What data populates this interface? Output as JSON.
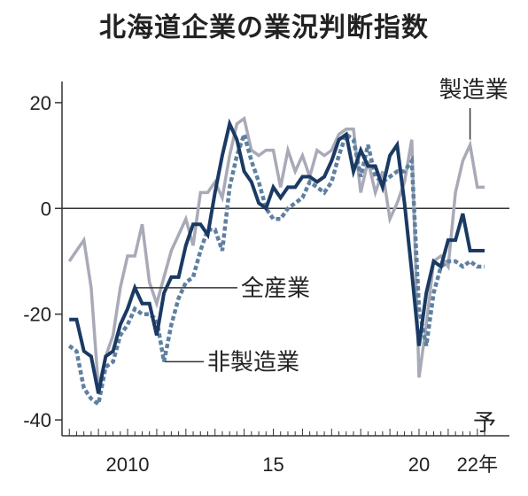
{
  "title": "北海道企業の業況判断指数",
  "chart_data": {
    "type": "line",
    "title": "北海道企業の業況判断指数",
    "ylim": [
      -43,
      24
    ],
    "xlim": [
      2007.75,
      2023.1
    ],
    "yticks": [
      20,
      0,
      -20,
      -40
    ],
    "ytick_labels": [
      "20",
      "0",
      "-20",
      "-40"
    ],
    "xtick_labels": [
      {
        "x": 2010,
        "label": "2010"
      },
      {
        "x": 2015,
        "label": "15"
      },
      {
        "x": 2020,
        "label": "20"
      },
      {
        "x": 2022,
        "label": "22年"
      }
    ],
    "forecast_label": "予",
    "grid": false,
    "zero_line": true,
    "series": [
      {
        "name": "製造業",
        "color": "#a9aab8",
        "style": "solid",
        "x": [
          2008.0,
          2008.25,
          2008.5,
          2008.75,
          2009.0,
          2009.25,
          2009.5,
          2009.75,
          2010.0,
          2010.25,
          2010.5,
          2010.75,
          2011.0,
          2011.25,
          2011.5,
          2011.75,
          2012.0,
          2012.25,
          2012.5,
          2012.75,
          2013.0,
          2013.25,
          2013.5,
          2013.75,
          2014.0,
          2014.25,
          2014.5,
          2014.75,
          2015.0,
          2015.25,
          2015.5,
          2015.75,
          2016.0,
          2016.25,
          2016.5,
          2016.75,
          2017.0,
          2017.25,
          2017.5,
          2017.75,
          2018.0,
          2018.25,
          2018.5,
          2018.75,
          2019.0,
          2019.25,
          2019.5,
          2019.75,
          2020.0,
          2020.25,
          2020.5,
          2020.75,
          2021.0,
          2021.25,
          2021.5,
          2021.75,
          2022.0,
          2022.25
        ],
        "values": [
          -10,
          -8,
          -6,
          -15,
          -34,
          -28,
          -24,
          -15,
          -9,
          -9,
          -3,
          -14,
          -18,
          -13,
          -8,
          -5,
          -2,
          -7,
          3,
          3,
          5,
          2,
          10,
          16,
          17,
          11,
          10,
          11,
          11,
          4,
          11,
          7,
          10,
          6,
          11,
          10,
          11,
          14,
          15,
          15,
          3,
          9,
          3,
          7,
          -2,
          1,
          5,
          13,
          -32,
          -22,
          -10,
          -9,
          -11,
          3,
          9,
          12,
          4,
          4
        ]
      },
      {
        "name": "非製造業",
        "color": "#5f80a0",
        "style": "dotted",
        "x": [
          2008.0,
          2008.25,
          2008.5,
          2008.75,
          2009.0,
          2009.25,
          2009.5,
          2009.75,
          2010.0,
          2010.25,
          2010.5,
          2010.75,
          2011.0,
          2011.25,
          2011.5,
          2011.75,
          2012.0,
          2012.25,
          2012.5,
          2012.75,
          2013.0,
          2013.25,
          2013.5,
          2013.75,
          2014.0,
          2014.25,
          2014.5,
          2014.75,
          2015.0,
          2015.25,
          2015.5,
          2015.75,
          2016.0,
          2016.25,
          2016.5,
          2016.75,
          2017.0,
          2017.25,
          2017.5,
          2017.75,
          2018.0,
          2018.25,
          2018.5,
          2018.75,
          2019.0,
          2019.25,
          2019.5,
          2019.75,
          2020.0,
          2020.25,
          2020.5,
          2020.75,
          2021.0,
          2021.25,
          2021.5,
          2021.75,
          2022.0,
          2022.25
        ],
        "values": [
          -26,
          -27,
          -34,
          -36,
          -37,
          -30,
          -29,
          -24,
          -22,
          -19,
          -20,
          -20,
          -21,
          -29,
          -22,
          -17,
          -14,
          -13,
          -8,
          -4,
          -4,
          -8,
          4,
          10,
          14,
          9,
          5,
          0,
          -2,
          -2,
          0,
          1,
          2,
          5,
          4,
          3,
          5,
          10,
          14,
          13,
          6,
          12,
          6,
          5,
          6,
          7,
          7,
          9,
          -19,
          -26,
          -16,
          -11,
          -10,
          -10,
          -11,
          -10,
          -11,
          -11
        ]
      },
      {
        "name": "全産業",
        "color": "#1a3a63",
        "style": "solid",
        "x": [
          2008.0,
          2008.25,
          2008.5,
          2008.75,
          2009.0,
          2009.25,
          2009.5,
          2009.75,
          2010.0,
          2010.25,
          2010.5,
          2010.75,
          2011.0,
          2011.25,
          2011.5,
          2011.75,
          2012.0,
          2012.25,
          2012.5,
          2012.75,
          2013.0,
          2013.25,
          2013.5,
          2013.75,
          2014.0,
          2014.25,
          2014.5,
          2014.75,
          2015.0,
          2015.25,
          2015.5,
          2015.75,
          2016.0,
          2016.25,
          2016.5,
          2016.75,
          2017.0,
          2017.25,
          2017.5,
          2017.75,
          2018.0,
          2018.25,
          2018.5,
          2018.75,
          2019.0,
          2019.25,
          2019.5,
          2019.75,
          2020.0,
          2020.25,
          2020.5,
          2020.75,
          2021.0,
          2021.25,
          2021.5,
          2021.75,
          2022.0,
          2022.25
        ],
        "values": [
          -21,
          -21,
          -27,
          -28,
          -35,
          -28,
          -27,
          -22,
          -19,
          -15,
          -18,
          -18,
          -24,
          -16,
          -13,
          -13,
          -7,
          -3,
          -3,
          -5,
          3,
          10,
          16,
          13,
          7,
          5,
          1,
          0,
          4,
          2,
          4,
          4,
          6,
          6,
          5,
          6,
          9,
          13,
          14,
          7,
          11,
          8,
          8,
          4,
          10,
          12,
          1,
          -12,
          -26,
          -16,
          -10,
          -11,
          -6,
          -6,
          -1,
          -8,
          -8,
          -8
        ]
      }
    ],
    "annotations": [
      {
        "text": "製造業",
        "series": "製造業"
      },
      {
        "text": "全産業",
        "series": "全産業"
      },
      {
        "text": "非製造業",
        "series": "非製造業"
      }
    ]
  }
}
